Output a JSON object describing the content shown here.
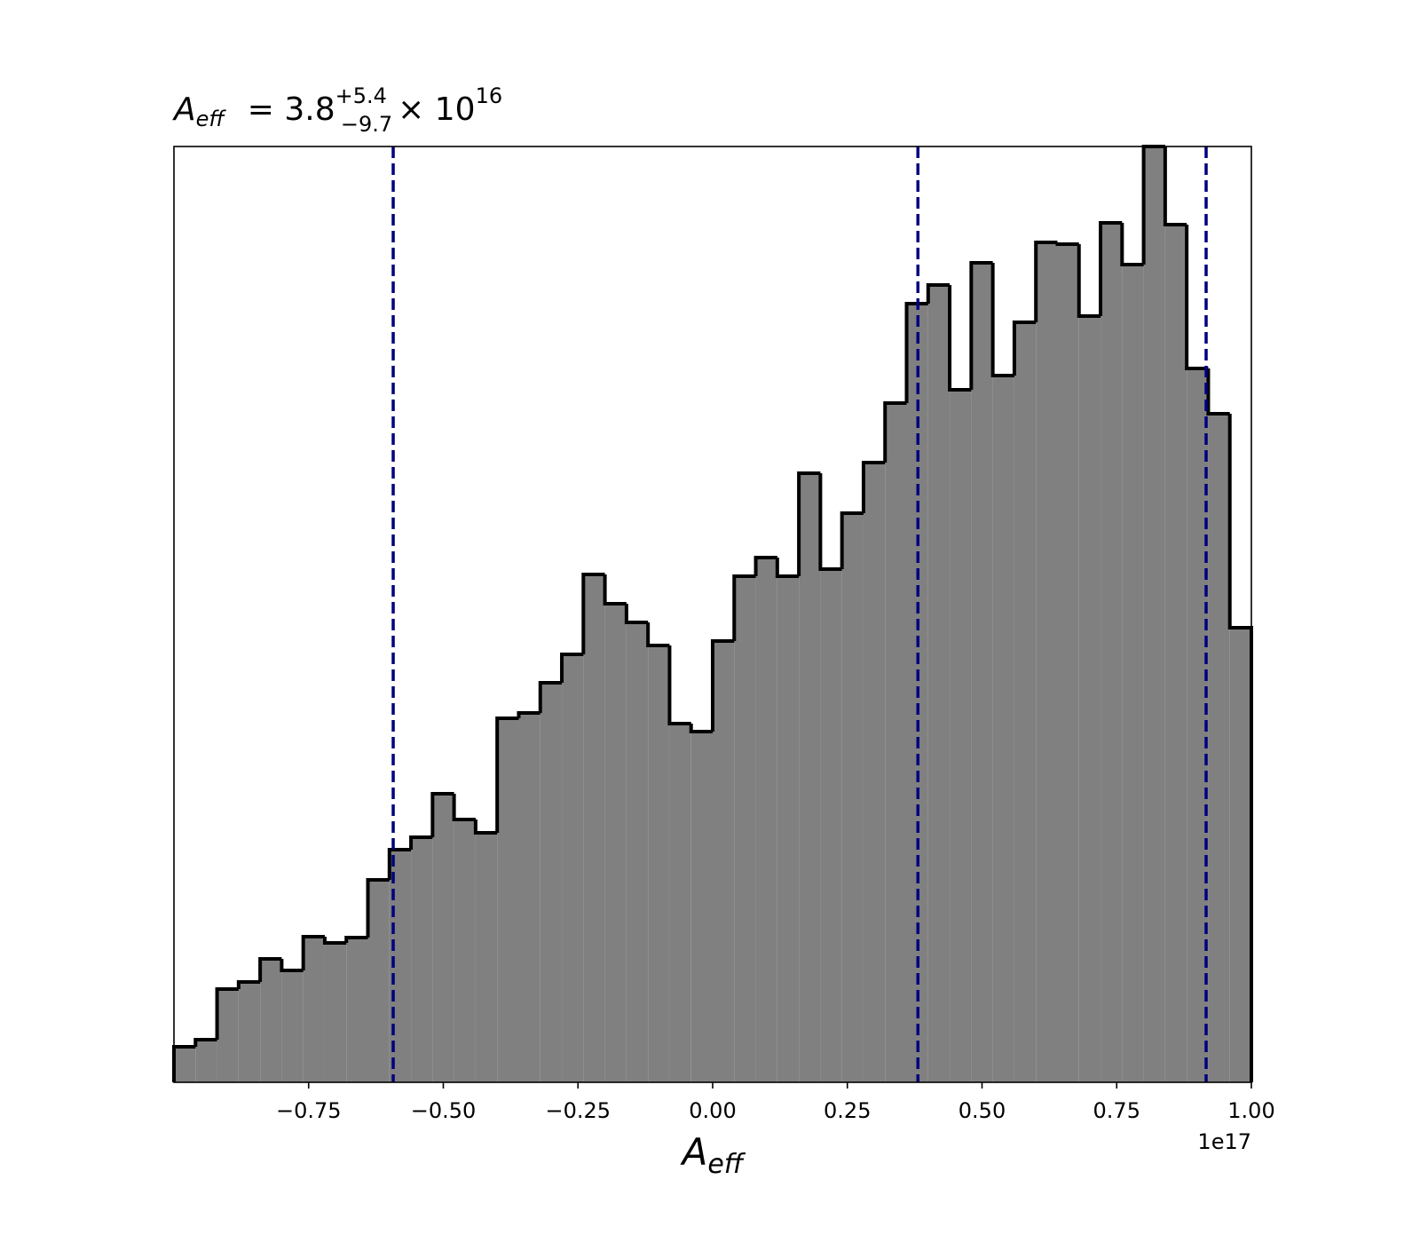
{
  "chart_data": {
    "type": "histogram",
    "title": {
      "symbol": "A",
      "subscript": "eff",
      "text": "= 3.8",
      "upper": "+5.4",
      "lower": "−9.7",
      "times": "× 10",
      "exponent": "16"
    },
    "xlabel": {
      "symbol": "A",
      "subscript": "eff"
    },
    "x_offset_label": "1e17",
    "bins": [
      -1.0,
      -0.96,
      -0.92,
      -0.88,
      -0.84,
      -0.8,
      -0.76,
      -0.72,
      -0.68,
      -0.64,
      -0.6,
      -0.56,
      -0.52,
      -0.48,
      -0.44,
      -0.4,
      -0.36,
      -0.32,
      -0.28,
      -0.24,
      -0.2,
      -0.16,
      -0.12,
      -0.08,
      -0.04,
      0.0,
      0.04,
      0.08,
      0.12,
      0.16,
      0.2,
      0.24,
      0.28,
      0.32,
      0.36,
      0.4,
      0.44,
      0.48,
      0.52,
      0.56,
      0.6,
      0.64,
      0.68,
      0.72,
      0.76,
      0.8,
      0.84,
      0.88,
      0.92,
      0.96,
      1.0
    ],
    "values": [
      40,
      48,
      105,
      113,
      139,
      126,
      164,
      157,
      163,
      228,
      262,
      276,
      325,
      296,
      281,
      410,
      416,
      450,
      482,
      572,
      539,
      518,
      492,
      404,
      395,
      497,
      570,
      591,
      570,
      686,
      578,
      641,
      698,
      765,
      877,
      898,
      780,
      923,
      796,
      856,
      946,
      944,
      863,
      968,
      921,
      1054,
      966,
      804,
      753,
      512
    ],
    "color": "#808080",
    "edge_color": "#000000",
    "vlines": [
      -0.593,
      0.381,
      0.916
    ],
    "vline_color": "#00007f",
    "xlim": [
      -1.0,
      1.0
    ],
    "ylim": [
      0,
      1054
    ],
    "xticks": [
      {
        "value": -0.75,
        "label": "−0.75"
      },
      {
        "value": -0.5,
        "label": "−0.50"
      },
      {
        "value": -0.25,
        "label": "−0.25"
      },
      {
        "value": 0,
        "label": "0.00"
      },
      0.25,
      {
        "value": 0.5,
        "label": "0.50"
      },
      0.75,
      {
        "value": 1.0,
        "label": "1.00"
      }
    ]
  }
}
